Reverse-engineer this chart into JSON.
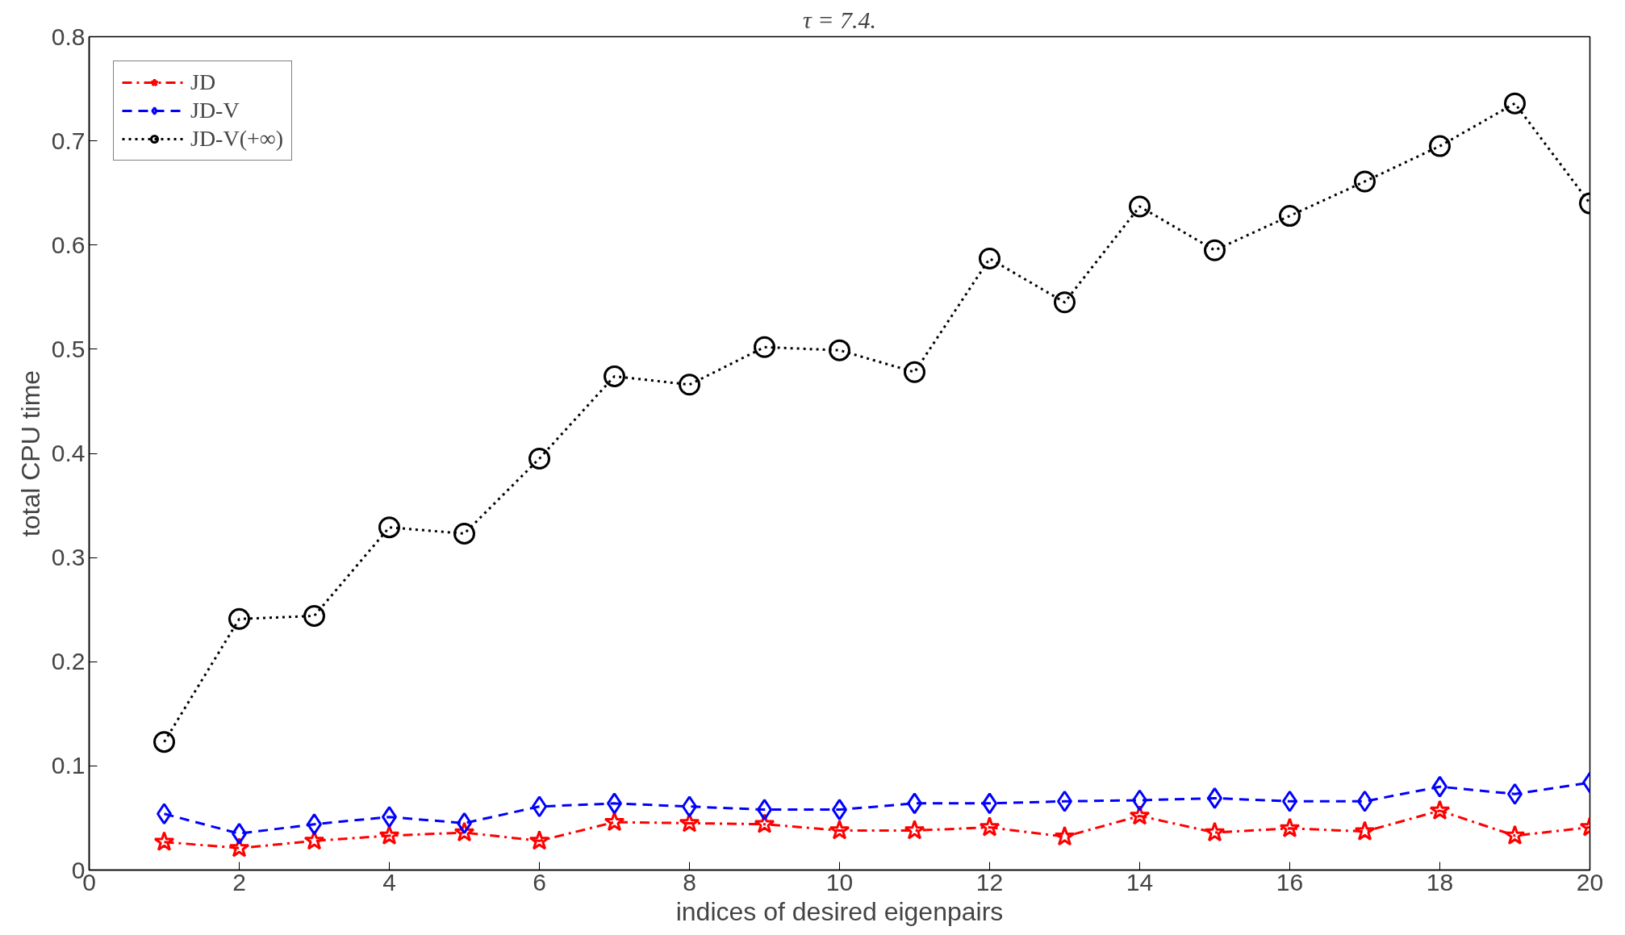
{
  "chart_data": {
    "type": "line",
    "title": "τ = 7.4.",
    "xlabel": "indices of desired eigenpairs",
    "ylabel": "total CPU time",
    "x": [
      1,
      2,
      3,
      4,
      5,
      6,
      7,
      8,
      9,
      10,
      11,
      12,
      13,
      14,
      15,
      16,
      17,
      18,
      19,
      20
    ],
    "series": [
      {
        "name": "JD",
        "color": "#ff0000",
        "marker": "star",
        "line_style": "dashdot",
        "values": [
          0.027,
          0.021,
          0.028,
          0.033,
          0.036,
          0.028,
          0.046,
          0.045,
          0.044,
          0.038,
          0.038,
          0.041,
          0.032,
          0.052,
          0.036,
          0.04,
          0.037,
          0.057,
          0.033,
          0.041
        ]
      },
      {
        "name": "JD-V",
        "color": "#0000ff",
        "marker": "diamond",
        "line_style": "dashed",
        "values": [
          0.054,
          0.035,
          0.044,
          0.051,
          0.045,
          0.061,
          0.064,
          0.061,
          0.058,
          0.058,
          0.064,
          0.064,
          0.066,
          0.067,
          0.069,
          0.066,
          0.066,
          0.08,
          0.073,
          0.084
        ]
      },
      {
        "name": "JD-V(+∞)",
        "color": "#000000",
        "marker": "circle",
        "line_style": "dotted",
        "values": [
          0.123,
          0.241,
          0.244,
          0.329,
          0.323,
          0.395,
          0.474,
          0.466,
          0.502,
          0.499,
          0.478,
          0.587,
          0.545,
          0.637,
          0.595,
          0.628,
          0.661,
          0.695,
          0.736,
          0.64
        ]
      }
    ],
    "xlim": [
      0,
      20
    ],
    "ylim": [
      0,
      0.8
    ],
    "xticks": [
      0,
      2,
      4,
      6,
      8,
      10,
      12,
      14,
      16,
      18,
      20
    ],
    "yticks": [
      0,
      0.1,
      0.2,
      0.3,
      0.4,
      0.5,
      0.6,
      0.7,
      0.8
    ],
    "grid": false,
    "legend": "top left"
  }
}
